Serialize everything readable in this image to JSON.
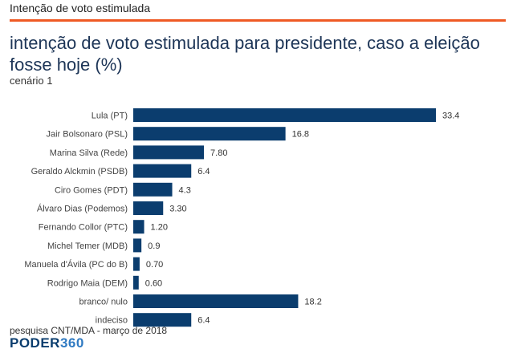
{
  "header": {
    "title": "Intenção de voto estimulada"
  },
  "colors": {
    "accent": "#ef5a24",
    "bar": "#0b3d6e",
    "title": "#1d3557"
  },
  "chart_data": {
    "type": "bar",
    "orientation": "horizontal",
    "title": "intenção de voto estimulada para presidente, caso a eleição fosse hoje (%)",
    "subtitle": "cenário 1",
    "categories": [
      "Lula (PT)",
      "Jair Bolsonaro (PSL)",
      "Marina Silva (Rede)",
      "Geraldo Alckmin (PSDB)",
      "Ciro Gomes (PDT)",
      "Álvaro Dias (Podemos)",
      "Fernando Collor (PTC)",
      "Michel Temer (MDB)",
      "Manuela d'Ávila (PC do B)",
      "Rodrigo Maia (DEM)",
      "branco/ nulo",
      "indeciso"
    ],
    "values": [
      33.4,
      16.8,
      7.8,
      6.4,
      4.3,
      3.3,
      1.2,
      0.9,
      0.7,
      0.6,
      18.2,
      6.4
    ],
    "value_labels": [
      "33.4",
      "16.8",
      "7.80",
      "6.4",
      "4.3",
      "3.30",
      "1.20",
      "0.9",
      "0.70",
      "0.60",
      "18.2",
      "6.4"
    ],
    "xlim": [
      0,
      33.4
    ],
    "grid": false,
    "legend": "none"
  },
  "footer": {
    "source": "pesquisa CNT/MDA - março de 2018",
    "logo_part1": "PODER",
    "logo_part2": "360"
  }
}
